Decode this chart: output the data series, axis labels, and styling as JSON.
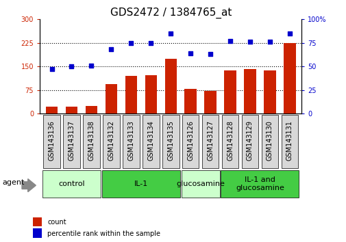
{
  "title": "GDS2472 / 1384765_at",
  "categories": [
    "GSM143136",
    "GSM143137",
    "GSM143138",
    "GSM143132",
    "GSM143133",
    "GSM143134",
    "GSM143135",
    "GSM143126",
    "GSM143127",
    "GSM143128",
    "GSM143129",
    "GSM143130",
    "GSM143131"
  ],
  "bar_values": [
    22,
    22,
    25,
    95,
    120,
    122,
    175,
    80,
    72,
    138,
    142,
    138,
    225
  ],
  "dot_values": [
    47,
    50,
    51,
    68,
    75,
    75,
    85,
    64,
    63,
    77,
    76,
    76,
    85
  ],
  "bar_color": "#cc2200",
  "dot_color": "#0000cc",
  "ylim_left": [
    0,
    300
  ],
  "ylim_right": [
    0,
    100
  ],
  "yticks_left": [
    0,
    75,
    150,
    225,
    300
  ],
  "yticks_right": [
    0,
    25,
    50,
    75,
    100
  ],
  "ytick_right_labels": [
    "0",
    "25",
    "50",
    "75",
    "100%"
  ],
  "hlines": [
    75,
    150,
    225
  ],
  "groups": [
    {
      "label": "control",
      "start": 0,
      "end": 3,
      "color": "#ccffcc"
    },
    {
      "label": "IL-1",
      "start": 3,
      "end": 7,
      "color": "#44cc44"
    },
    {
      "label": "glucosamine",
      "start": 7,
      "end": 9,
      "color": "#ccffcc"
    },
    {
      "label": "IL-1 and\nglucosamine",
      "start": 9,
      "end": 13,
      "color": "#44cc44"
    }
  ],
  "agent_label": "agent",
  "legend_bar_label": "count",
  "legend_dot_label": "percentile rank within the sample",
  "title_fontsize": 11,
  "tick_fontsize": 7,
  "label_fontsize": 8,
  "group_label_fontsize": 8
}
